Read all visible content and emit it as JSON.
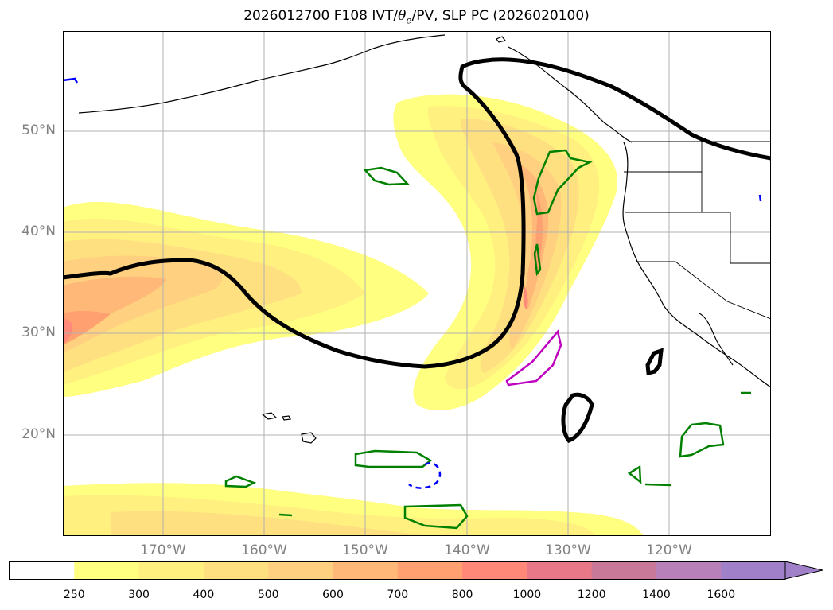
{
  "title": {
    "prefix": "2026012700 F108 IVT/",
    "theta": "θ",
    "sub": "e",
    "suffix": "/PV, SLP PC (2026020100)"
  },
  "map": {
    "lat_labels": [
      "50°N",
      "40°N",
      "30°N",
      "20°N"
    ],
    "lon_labels": [
      "170°W",
      "160°W",
      "150°W",
      "140°W",
      "130°W",
      "120°W"
    ]
  },
  "colorbar": {
    "levels": [
      "250",
      "300",
      "400",
      "500",
      "600",
      "700",
      "800",
      "1000",
      "1200",
      "1400",
      "1600"
    ],
    "colors": [
      "#ffffff",
      "#ffff80",
      "#fff080",
      "#ffe080",
      "#ffd080",
      "#ffb878",
      "#ffa070",
      "#ff8878",
      "#e87888",
      "#c87898",
      "#b880b8",
      "#a080c8"
    ]
  }
}
